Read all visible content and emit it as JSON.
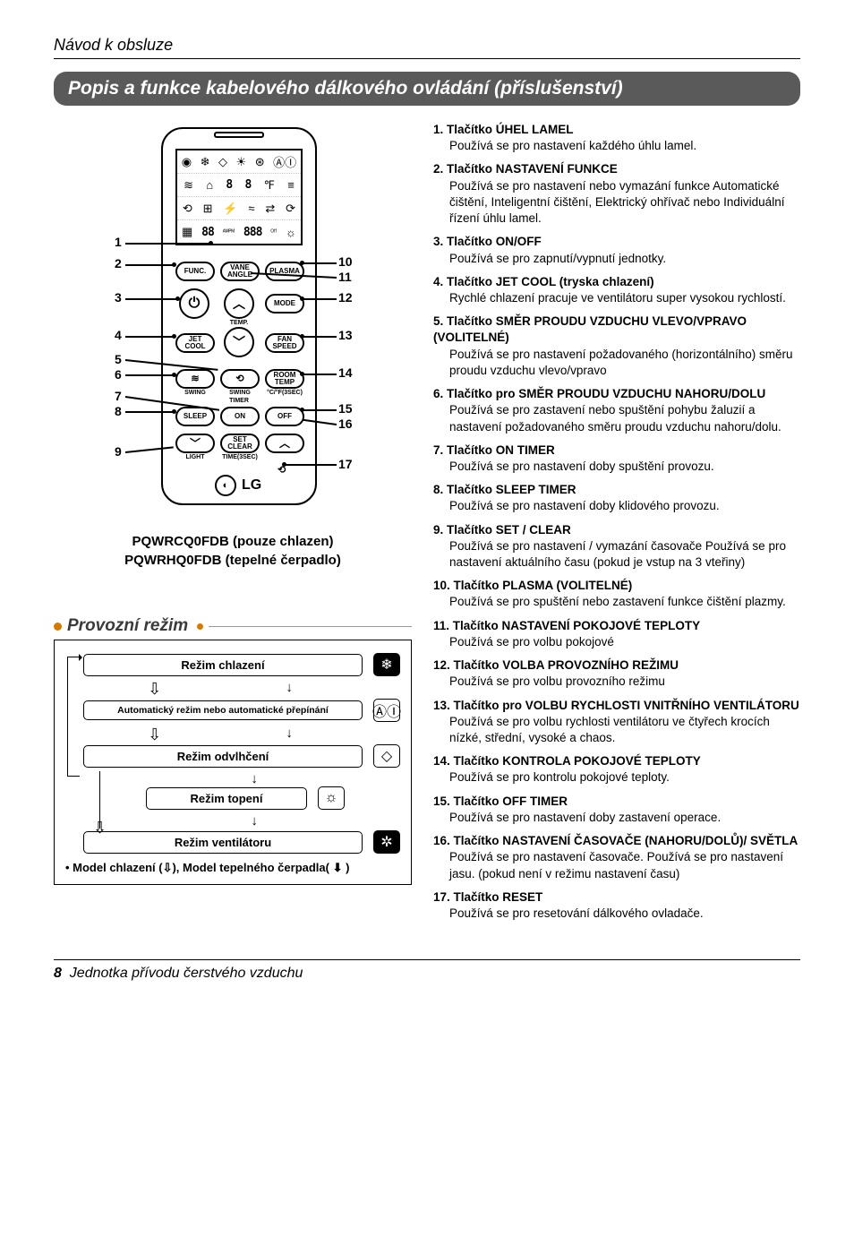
{
  "page": {
    "breadcrumb": "Návod k obsluze",
    "title": "Popis a funkce kabelového dálkového ovládání (příslušenství)",
    "footer_page": "8",
    "footer_text": "Jednotka přívodu čerstvého vzduchu"
  },
  "remote": {
    "display_rows": [
      [
        "◉",
        "❄",
        "◇",
        "☀",
        "⊛",
        "ⒶⒾ"
      ],
      [
        "≋",
        "⌂",
        "8",
        "8",
        "℉",
        "≡"
      ],
      [
        "⟲",
        "⊞",
        "⚡",
        "≈",
        "⇄",
        "⟳"
      ],
      [
        "▦",
        "88",
        "ᴬᴹᴾᴹ",
        "888",
        "ᴼᶠᶠ",
        "☼"
      ]
    ],
    "buttons": {
      "func": "FUNC.",
      "vane": "VANE\nANGLE",
      "plasma": "PLASMA",
      "power": "⏻",
      "up": "︿",
      "mode": "MODE",
      "temp": "TEMP.",
      "jet": "JET\nCOOL",
      "down": "﹀",
      "fan": "FAN\nSPEED",
      "swing_l": "SWING",
      "swing_r": "SWING",
      "room": "ROOM\nTEMP",
      "timer": "TIMER",
      "cfs": "°C/°F(3SEC)",
      "sleep": "SLEEP",
      "on": "ON",
      "off": "OFF",
      "set": "SET\nCLEAR",
      "light": "LIGHT",
      "timesec": "TIME(3SEC)",
      "down2": "﹀",
      "up2": "︿",
      "reset": "⟲"
    },
    "logo": "LG",
    "callouts_left": [
      "1",
      "2",
      "3",
      "4",
      "5",
      "6",
      "7",
      "8",
      "9"
    ],
    "callouts_right": [
      "10",
      "11",
      "12",
      "13",
      "14",
      "15",
      "16",
      "17"
    ],
    "model_caption_1": "PQWRCQ0FDB (pouze chlazen)",
    "model_caption_2": "PQWRHQ0FDB (tepelné čerpadlo)"
  },
  "mode": {
    "heading": "Provozní režim",
    "rows": [
      {
        "label": "Režim chlazení",
        "icon": "❄",
        "inv": true,
        "small": false
      },
      {
        "label": "Automatický režim nebo automatické přepínání",
        "icon": "ⒶⒾ",
        "inv": false,
        "small": true
      },
      {
        "label": "Režim odvlhčení",
        "icon": "◇",
        "inv": false,
        "small": false
      },
      {
        "label": "Režim topení",
        "icon": "☼",
        "inv": false,
        "small": false,
        "indent": true
      },
      {
        "label": "Režim ventilátoru",
        "icon": "✲",
        "inv": true,
        "small": false
      }
    ],
    "footer": "• Model chlazení (⇩), Model tepelného čerpadla( ⬇ )"
  },
  "items": [
    {
      "n": "1.",
      "t": "Tlačítko ÚHEL LAMEL",
      "d": "Používá se pro nastavení každého úhlu lamel."
    },
    {
      "n": "2.",
      "t": "Tlačítko NASTAVENÍ FUNKCE",
      "d": "Používá se pro nastavení nebo vymazání funkce Automatické čištění, Inteligentní čištění, Elektrický ohřívač nebo Individuální řízení úhlu lamel."
    },
    {
      "n": "3.",
      "t": "Tlačítko ON/OFF",
      "d": "Používá se pro zapnutí/vypnutí jednotky."
    },
    {
      "n": "4.",
      "t": "Tlačítko JET COOL (tryska chlazení)",
      "d": "Rychlé chlazení pracuje ve ventilátoru super vysokou rychlostí."
    },
    {
      "n": "5.",
      "t": "Tlačítko SMĚR PROUDU VZDUCHU VLEVO/VPRAVO (VOLITELNÉ)",
      "d": "Používá se pro nastavení požadovaného (horizontálního) směru proudu vzduchu vlevo/vpravo"
    },
    {
      "n": "6.",
      "t": "Tlačítko pro SMĚR PROUDU VZDUCHU NAHORU/DOLU",
      "d": "Používá se pro zastavení nebo spuštění pohybu žaluzií a nastavení požadovaného směru proudu vzduchu nahoru/dolu."
    },
    {
      "n": "7.",
      "t": "Tlačítko ON TIMER",
      "d": "Používá se pro nastavení doby spuštění provozu."
    },
    {
      "n": "8.",
      "t": "Tlačítko SLEEP TIMER",
      "d": "Používá se pro nastavení doby klidového provozu."
    },
    {
      "n": "9.",
      "t": "Tlačítko SET / CLEAR",
      "d": "Používá se pro nastavení / vymazání časovače Používá se pro nastavení aktuálního času (pokud je vstup na 3 vteřiny)"
    },
    {
      "n": "10.",
      "t": "Tlačítko PLASMA (VOLITELNÉ)",
      "d": "Používá se pro spuštění nebo zastavení funkce čištění plazmy."
    },
    {
      "n": "11.",
      "t": "Tlačítko NASTAVENÍ POKOJOVÉ TEPLOTY",
      "d": "Používá se pro volbu pokojové"
    },
    {
      "n": "12.",
      "t": "Tlačítko VOLBA PROVOZNÍHO REŽIMU",
      "d": "Používá se pro volbu provozního režimu"
    },
    {
      "n": "13.",
      "t": "Tlačítko pro VOLBU RYCHLOSTI VNITŘNÍHO VENTILÁTORU",
      "d": "Používá se pro volbu rychlosti ventilátoru ve čtyřech krocích nízké, střední, vysoké a chaos."
    },
    {
      "n": "14.",
      "t": "Tlačítko KONTROLA POKOJOVÉ TEPLOTY",
      "d": "Používá se pro kontrolu pokojové teploty."
    },
    {
      "n": "15.",
      "t": "Tlačítko OFF TIMER",
      "d": "Používá se pro nastavení doby zastavení operace."
    },
    {
      "n": "16.",
      "t": "Tlačítko NASTAVENÍ ČASOVAČE (NAHORU/DOLŮ)/ SVĚTLA",
      "d": "Používá se pro nastavení časovače. Používá se pro nastavení jasu. (pokud není v režimu nastavení času)"
    },
    {
      "n": "17.",
      "t": "Tlačítko RESET",
      "d": "Používá se pro resetování dálkového ovladače."
    }
  ],
  "style": {
    "band_bg": "#5a5a5a",
    "accent": "#d47a00"
  }
}
